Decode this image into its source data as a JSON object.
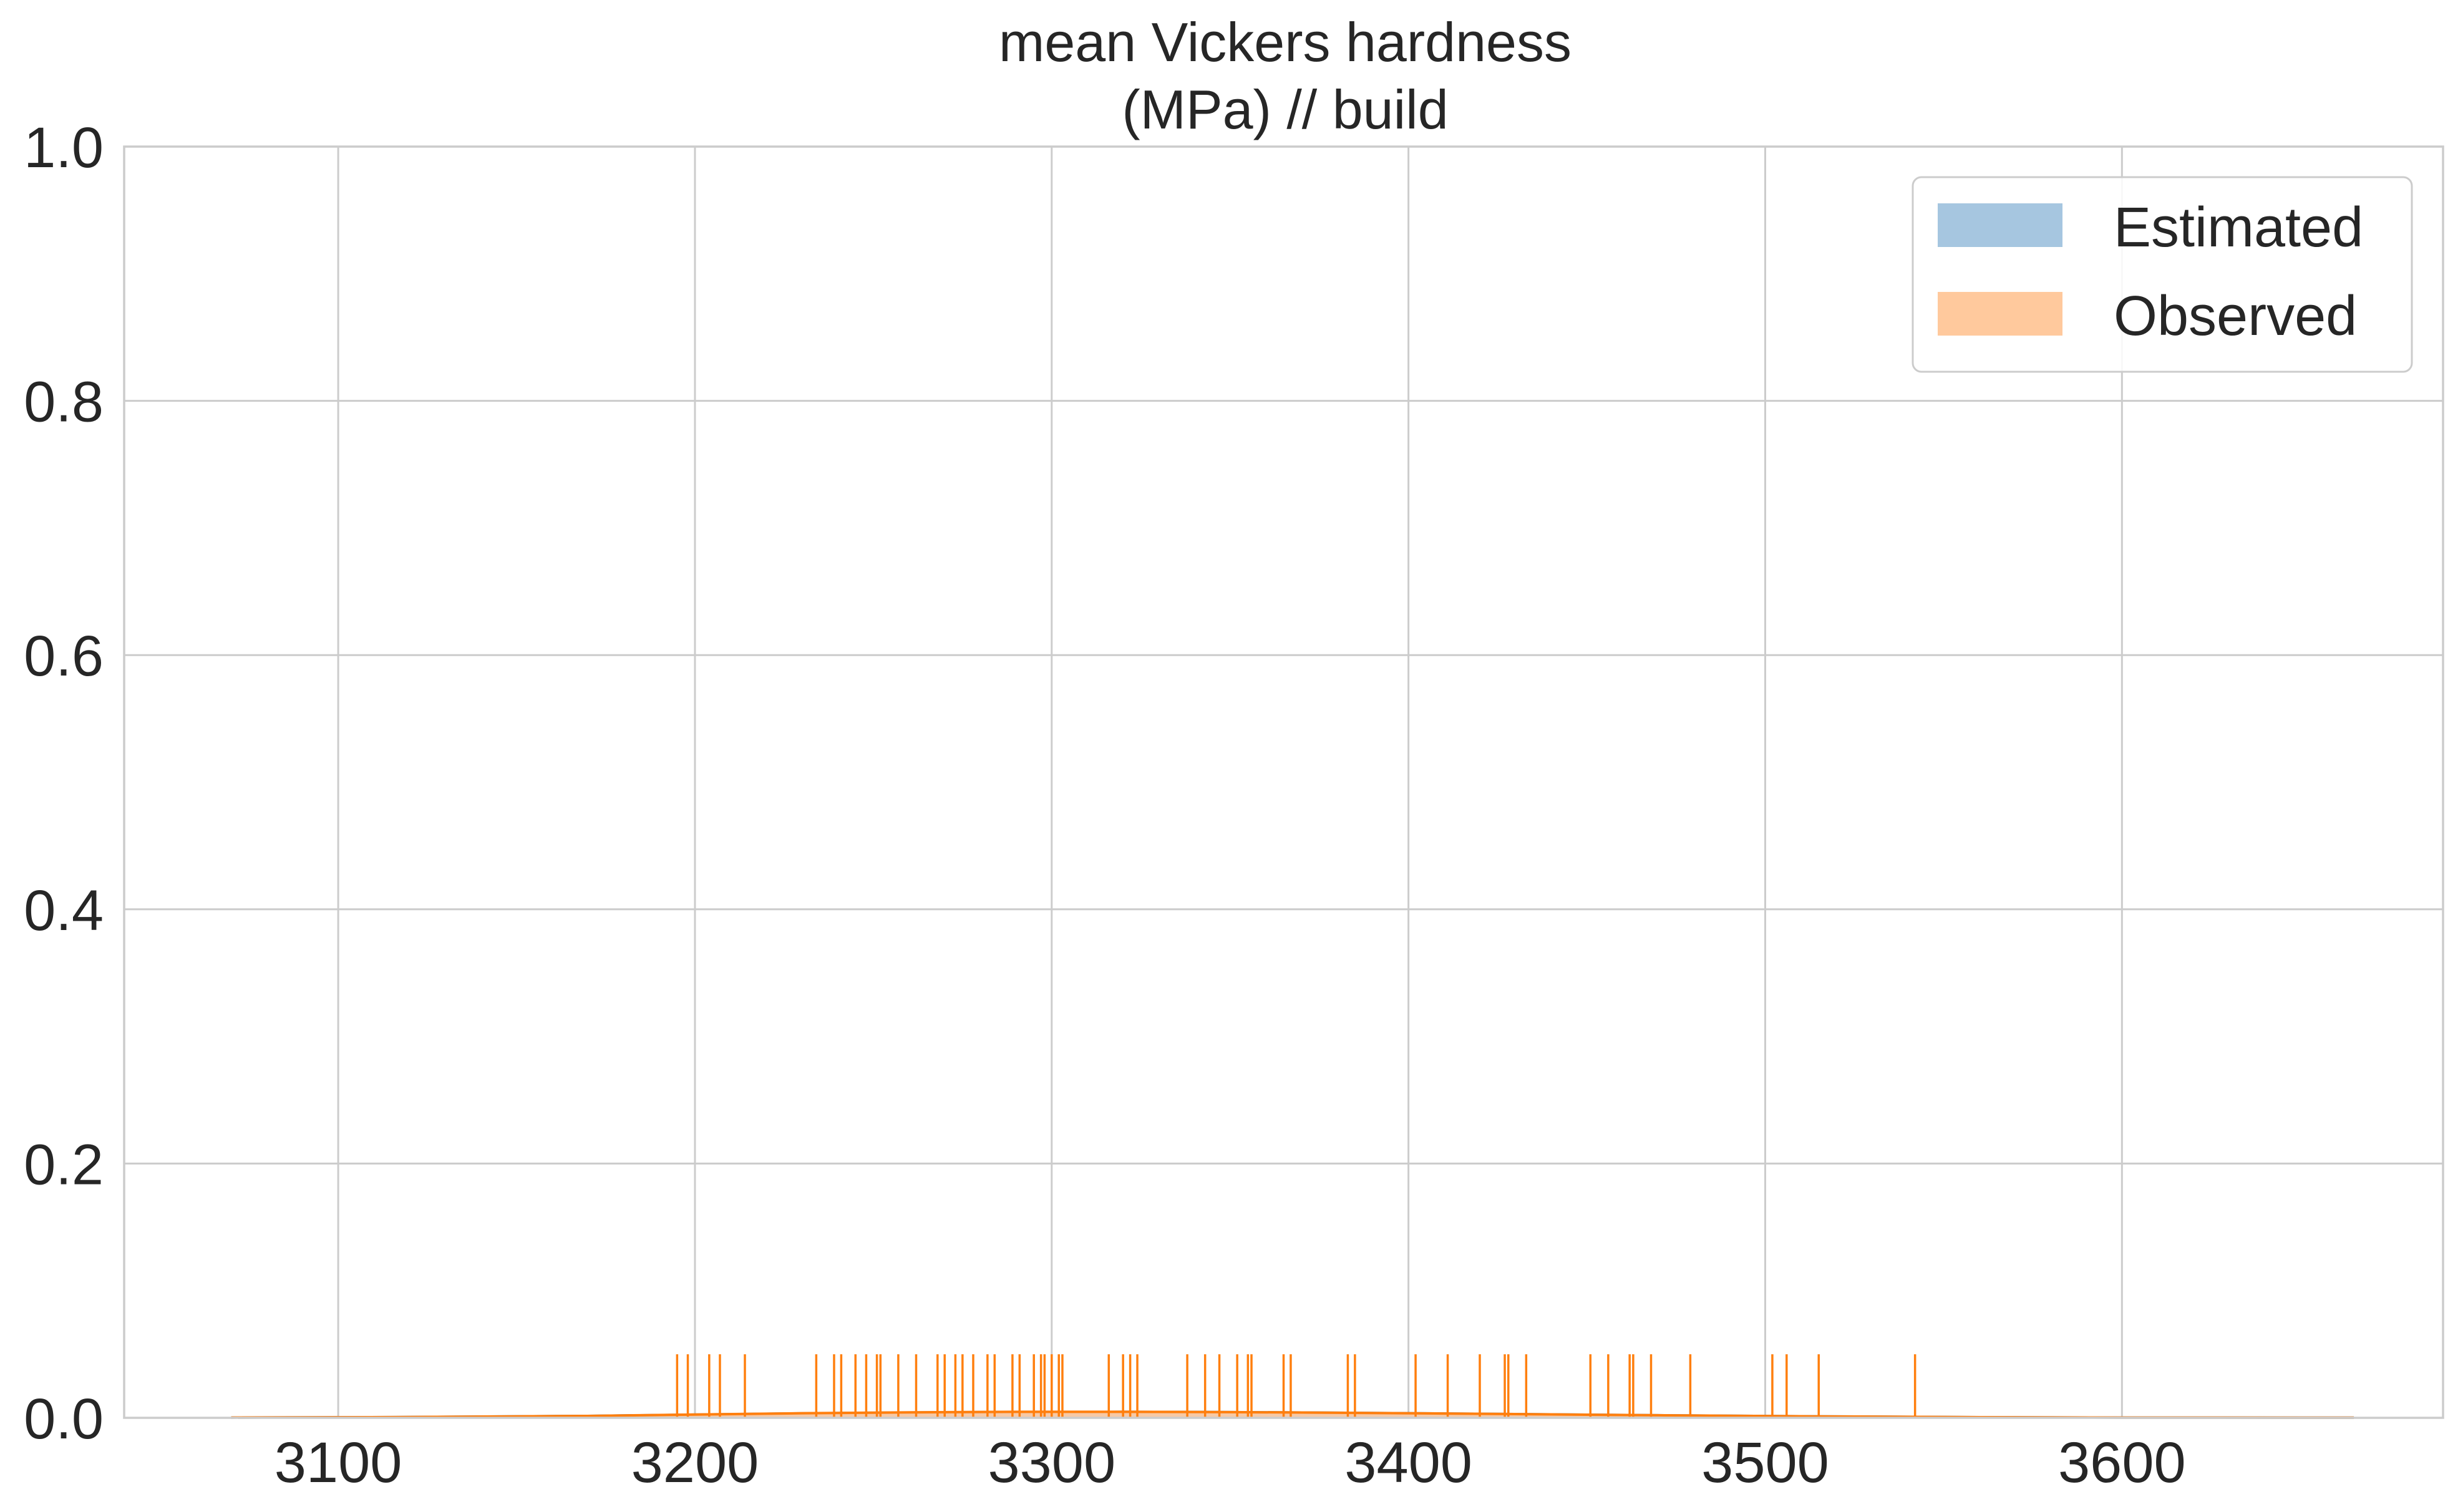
{
  "chart_data": {
    "type": "area",
    "title": "mean Vickers hardness\n(MPa) // build",
    "xlabel": "",
    "ylabel": "",
    "xlim": [
      3040,
      3690
    ],
    "ylim": [
      0,
      1.0
    ],
    "x_ticks": [
      3100,
      3200,
      3300,
      3400,
      3500,
      3600
    ],
    "x_tick_labels": [
      "3100",
      "3200",
      "3300",
      "3400",
      "3500",
      "3600"
    ],
    "y_ticks": [
      0.0,
      0.2,
      0.4,
      0.6,
      0.8,
      1.0
    ],
    "y_tick_labels": [
      "0.0",
      "0.2",
      "0.4",
      "0.6",
      "0.8",
      "1.0"
    ],
    "grid": true,
    "legend_position": "top-right",
    "series": [
      {
        "name": "Estimated",
        "color": "#a6c6e0",
        "line_color": "#1f77b4",
        "x": [
          3070,
          3120,
          3170,
          3200,
          3230,
          3260,
          3290,
          3320,
          3350,
          3380,
          3410,
          3440,
          3470,
          3500,
          3530,
          3560,
          3600,
          3665
        ],
        "y": [
          0.0002,
          0.0006,
          0.0015,
          0.0025,
          0.0035,
          0.0042,
          0.0046,
          0.0047,
          0.0045,
          0.004,
          0.0034,
          0.0027,
          0.002,
          0.0014,
          0.0009,
          0.0005,
          0.0002,
          0.0001
        ]
      },
      {
        "name": "Observed",
        "color": "#ffc99d",
        "line_color": "#ff7f0e",
        "x": [
          3070,
          3120,
          3170,
          3200,
          3230,
          3260,
          3290,
          3320,
          3350,
          3380,
          3410,
          3440,
          3470,
          3500,
          3530,
          3560,
          3600,
          3665
        ],
        "y": [
          0.0002,
          0.0006,
          0.0015,
          0.0026,
          0.0036,
          0.0043,
          0.0047,
          0.0047,
          0.0045,
          0.004,
          0.0034,
          0.0027,
          0.002,
          0.0014,
          0.0009,
          0.0005,
          0.0002,
          0.0001
        ]
      }
    ],
    "rug": {
      "color": "#ff7f0e",
      "height": 0.05,
      "values": [
        3195,
        3198,
        3204,
        3207,
        3214,
        3234,
        3239,
        3241,
        3245,
        3248,
        3251,
        3252,
        3257,
        3262,
        3268,
        3270,
        3273,
        3275,
        3278,
        3282,
        3284,
        3289,
        3291,
        3295,
        3297,
        3298,
        3300,
        3302,
        3303,
        3316,
        3320,
        3322,
        3324,
        3338,
        3343,
        3347,
        3352,
        3355,
        3356,
        3365,
        3367,
        3383,
        3385,
        3402,
        3411,
        3420,
        3427,
        3428,
        3433,
        3451,
        3456,
        3462,
        3463,
        3468,
        3479,
        3502,
        3506,
        3515,
        3542
      ]
    }
  }
}
